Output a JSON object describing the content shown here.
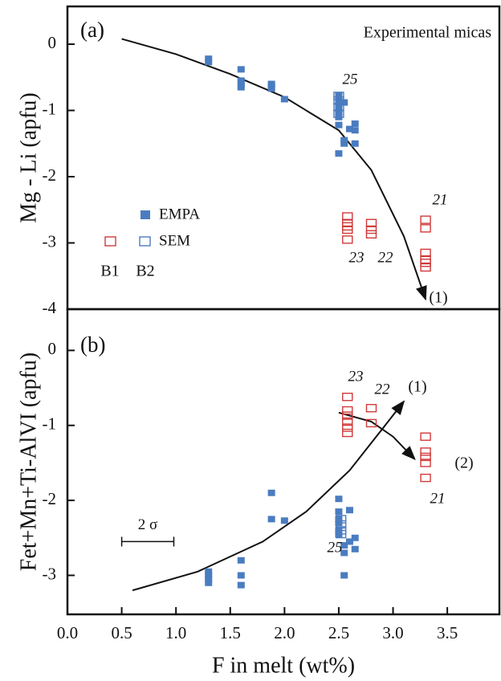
{
  "chart_data": [
    {
      "type": "scatter",
      "panel_label": "(a)",
      "title": "Experimental micas",
      "ylabel": "Mg - Li (apfu)",
      "xlim": [
        0,
        3.98
      ],
      "ylim": [
        -4,
        0.57
      ],
      "yticks": [
        -4,
        -3,
        -2,
        -1,
        0
      ],
      "legend": {
        "rows": [
          "EMPA",
          "SEM"
        ],
        "columns": [
          "B1",
          "B2"
        ]
      },
      "series": [
        {
          "color": "#4a7cc0",
          "marker": "filled",
          "x": [
            1.3,
            1.3,
            1.6,
            1.6,
            1.6,
            1.6,
            1.88,
            1.88,
            1.88,
            2.0,
            2.5,
            2.5,
            2.5,
            2.5,
            2.5,
            2.5,
            2.5,
            2.5,
            2.5,
            2.55,
            2.55,
            2.55,
            2.6,
            2.65,
            2.65,
            2.65
          ],
          "y": [
            -0.22,
            -0.27,
            -0.38,
            -0.55,
            -0.6,
            -0.65,
            -0.6,
            -0.63,
            -0.67,
            -0.83,
            -0.78,
            -0.85,
            -0.9,
            -0.95,
            -1.0,
            -1.05,
            -1.1,
            -1.22,
            -1.65,
            -0.88,
            -1.45,
            -1.5,
            -1.28,
            -1.2,
            -1.3,
            -1.5
          ]
        },
        {
          "color": "#4a7cc0",
          "marker": "open",
          "x": [
            2.5,
            2.5,
            2.5,
            2.5
          ],
          "y": [
            -0.78,
            -0.85,
            -0.95,
            -1.05
          ]
        },
        {
          "color": "#d03a3a",
          "marker": "open",
          "x": [
            2.58,
            2.58,
            2.58,
            2.58,
            2.58,
            2.8,
            2.8,
            2.8,
            3.3,
            3.3,
            3.3,
            3.3,
            3.3,
            3.3
          ],
          "y": [
            -2.6,
            -2.7,
            -2.75,
            -2.8,
            -2.95,
            -2.7,
            -2.8,
            -2.87,
            -2.65,
            -2.78,
            -3.15,
            -3.25,
            -3.3,
            -3.37
          ]
        }
      ],
      "curves": [
        {
          "color": "#111111",
          "x": [
            0.5,
            1.0,
            1.5,
            2.0,
            2.5,
            2.8,
            3.1,
            3.3
          ],
          "y": [
            0.08,
            -0.15,
            -0.45,
            -0.8,
            -1.3,
            -1.9,
            -2.9,
            -3.85
          ]
        }
      ],
      "annotations": [
        "25",
        "23",
        "22",
        "21",
        "(1)"
      ]
    },
    {
      "type": "scatter",
      "panel_label": "(b)",
      "ylabel": "Fet+Mn+Ti-AlVI (apfu)",
      "xlabel": "F in melt (wt%)",
      "xlim": [
        0,
        3.98
      ],
      "ylim": [
        -3.52,
        0.55
      ],
      "yticks": [
        -3,
        -2,
        -1,
        0
      ],
      "xticks": [
        {
          "value": 0,
          "label": "0.0"
        },
        0.5,
        {
          "value": 1,
          "label": "1.0"
        },
        1.5,
        {
          "value": 2,
          "label": "2.0"
        },
        2.5,
        {
          "value": 3,
          "label": "3.0"
        },
        3.5
      ],
      "series": [
        {
          "color": "#4a7cc0",
          "marker": "filled",
          "x": [
            1.3,
            1.3,
            1.3,
            1.3,
            1.6,
            1.6,
            1.6,
            1.88,
            1.88,
            2.0,
            2.5,
            2.5,
            2.5,
            2.5,
            2.5,
            2.5,
            2.55,
            2.55,
            2.55,
            2.6,
            2.6,
            2.65,
            2.65
          ],
          "y": [
            -2.95,
            -3.0,
            -3.05,
            -3.1,
            -2.8,
            -3.0,
            -3.13,
            -1.9,
            -2.25,
            -2.27,
            -1.98,
            -2.15,
            -2.25,
            -2.3,
            -2.4,
            -2.45,
            -2.6,
            -2.7,
            -3.0,
            -2.13,
            -2.55,
            -2.5,
            -2.65
          ]
        },
        {
          "color": "#4a7cc0",
          "marker": "open",
          "x": [
            2.52,
            2.52,
            2.52,
            2.52
          ],
          "y": [
            -2.25,
            -2.32,
            -2.4,
            -2.45
          ]
        },
        {
          "color": "#d03a3a",
          "marker": "open",
          "x": [
            2.58,
            2.58,
            2.58,
            2.58,
            2.58,
            2.58,
            2.8,
            2.8,
            3.3,
            3.3,
            3.3,
            3.3,
            3.3
          ],
          "y": [
            -0.62,
            -0.8,
            -0.87,
            -0.95,
            -1.03,
            -1.1,
            -0.77,
            -0.97,
            -1.15,
            -1.35,
            -1.42,
            -1.5,
            -1.7
          ]
        }
      ],
      "curves": [
        {
          "color": "#111111",
          "x": [
            0.6,
            1.2,
            1.8,
            2.2,
            2.6,
            2.9,
            3.1
          ],
          "y": [
            -3.2,
            -2.95,
            -2.55,
            -2.15,
            -1.6,
            -1.05,
            -0.68
          ]
        },
        {
          "color": "#111111",
          "x": [
            2.5,
            2.8,
            3.0,
            3.2
          ],
          "y": [
            -0.83,
            -0.95,
            -1.15,
            -1.45
          ]
        }
      ],
      "error_bar": {
        "x": [
          0.5,
          0.98
        ],
        "y": -2.55,
        "label": "2 σ"
      },
      "annotations": [
        "23",
        "22",
        "21",
        "25",
        "(1)",
        "(2)"
      ]
    }
  ]
}
